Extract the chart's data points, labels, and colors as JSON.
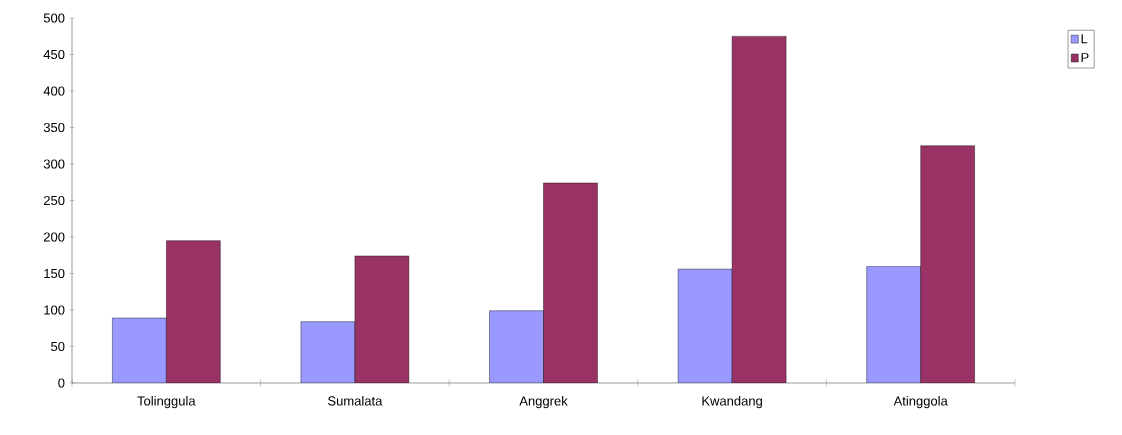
{
  "chart_data": {
    "type": "bar",
    "categories": [
      "Tolinggula",
      "Sumalata",
      "Anggrek",
      "Kwandang",
      "Atinggola"
    ],
    "series": [
      {
        "name": "L",
        "color": "#9999ff",
        "values": [
          89,
          84,
          99,
          156,
          160
        ]
      },
      {
        "name": "P",
        "color": "#993366",
        "values": [
          195,
          174,
          274,
          475,
          325
        ]
      }
    ],
    "ylim": [
      0,
      500
    ],
    "yticks": [
      0,
      50,
      100,
      150,
      200,
      250,
      300,
      350,
      400,
      450,
      500
    ],
    "grid": false,
    "legend": "right"
  }
}
